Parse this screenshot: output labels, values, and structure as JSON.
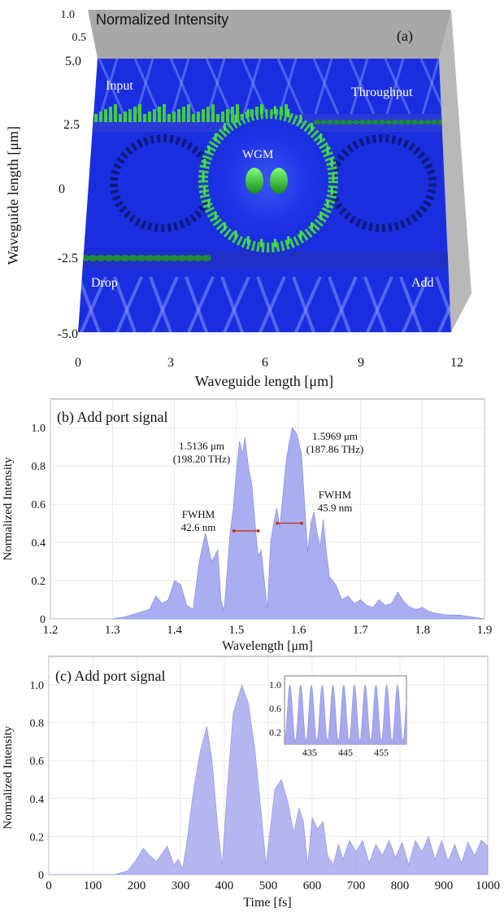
{
  "panel_a": {
    "z_label": "Normalized Intensity",
    "z_ticks": [
      "1.0",
      "0.5"
    ],
    "panel_label": "(a)",
    "y_label": "Waveguide length [μm]",
    "x_label": "Waveguide length [μm]",
    "y_ticks": [
      "5.0",
      "2.5",
      "0",
      "-2.5",
      "-5.0"
    ],
    "x_ticks": [
      "0",
      "3",
      "6",
      "9",
      "12"
    ],
    "annotations": {
      "input": "Input",
      "throughput": "Throughput",
      "drop": "Drop",
      "add": "Add",
      "wgm": "WGM"
    },
    "colors": {
      "field": "#1a2ee0",
      "peak": "#3fcf3f",
      "wall": "#b4b4b4"
    }
  },
  "chart_data": [
    {
      "type": "area",
      "title": "(b) Add port signal",
      "xlabel": "Wavelength [μm]",
      "ylabel": "Normalized Intensity",
      "xlim": [
        1.2,
        1.9
      ],
      "ylim": [
        0,
        1.15
      ],
      "x_ticks": [
        1.2,
        1.3,
        1.4,
        1.5,
        1.6,
        1.7,
        1.8,
        1.9
      ],
      "y_ticks": [
        0,
        0.2,
        0.4,
        0.6,
        0.8,
        1.0
      ],
      "x_tick_labels": [
        "1.2",
        "1.3",
        "1.4",
        "1.5",
        "1.6",
        "1.7",
        "1.8",
        "1.9"
      ],
      "y_tick_labels": [
        "0",
        "0.2",
        "0.4",
        "0.6",
        "0.8",
        "1.0"
      ],
      "fill_color": "#9aa0ee",
      "x": [
        1.3,
        1.32,
        1.34,
        1.36,
        1.37,
        1.38,
        1.39,
        1.4,
        1.41,
        1.42,
        1.43,
        1.44,
        1.45,
        1.46,
        1.47,
        1.475,
        1.48,
        1.49,
        1.495,
        1.5,
        1.505,
        1.51,
        1.5136,
        1.52,
        1.525,
        1.53,
        1.535,
        1.54,
        1.545,
        1.55,
        1.555,
        1.56,
        1.565,
        1.57,
        1.575,
        1.58,
        1.585,
        1.59,
        1.5969,
        1.605,
        1.61,
        1.615,
        1.62,
        1.625,
        1.63,
        1.635,
        1.64,
        1.645,
        1.65,
        1.66,
        1.67,
        1.68,
        1.69,
        1.7,
        1.71,
        1.72,
        1.73,
        1.74,
        1.75,
        1.76,
        1.77,
        1.78,
        1.79,
        1.8,
        1.81,
        1.82,
        1.84,
        1.86,
        1.88,
        1.9
      ],
      "values": [
        0.0,
        0.01,
        0.03,
        0.05,
        0.12,
        0.08,
        0.1,
        0.2,
        0.18,
        0.07,
        0.05,
        0.3,
        0.45,
        0.3,
        0.36,
        0.1,
        0.04,
        0.46,
        0.58,
        0.78,
        0.93,
        0.86,
        0.95,
        0.78,
        0.7,
        0.5,
        0.33,
        0.36,
        0.2,
        0.05,
        0.4,
        0.5,
        0.58,
        0.48,
        0.65,
        0.82,
        0.92,
        1.0,
        0.97,
        0.86,
        0.6,
        0.35,
        0.5,
        0.56,
        0.45,
        0.38,
        0.52,
        0.35,
        0.22,
        0.18,
        0.1,
        0.12,
        0.08,
        0.1,
        0.07,
        0.06,
        0.1,
        0.07,
        0.08,
        0.14,
        0.09,
        0.06,
        0.05,
        0.06,
        0.04,
        0.03,
        0.02,
        0.02,
        0.01,
        0.0
      ],
      "annotations": [
        {
          "text": "1.5136 μm",
          "x": 1.5136
        },
        {
          "text": "(198.20 THz)",
          "x": 1.5136
        },
        {
          "text": "1.5969 μm",
          "x": 1.5969
        },
        {
          "text": "(187.86 THz)",
          "x": 1.5969
        },
        {
          "text": "FWHM",
          "x": 1.46
        },
        {
          "text": "42.6 nm",
          "x": 1.46
        },
        {
          "text": "FWHM",
          "x": 1.64
        },
        {
          "text": "45.9 nm",
          "x": 1.64
        }
      ],
      "fwhm_markers": [
        {
          "x1": 1.496,
          "x2": 1.535,
          "y": 0.46
        },
        {
          "x1": 1.566,
          "x2": 1.605,
          "y": 0.5
        }
      ]
    },
    {
      "type": "area",
      "title": "(c) Add port signal",
      "xlabel": "Time [fs]",
      "ylabel": "Normalized Intensity",
      "xlim": [
        0,
        1000
      ],
      "ylim": [
        0,
        1.15
      ],
      "x_ticks": [
        0,
        100,
        200,
        300,
        400,
        500,
        600,
        700,
        800,
        900,
        1000
      ],
      "y_ticks": [
        0,
        0.2,
        0.4,
        0.6,
        0.8,
        1.0
      ],
      "x_tick_labels": [
        "0",
        "100",
        "200",
        "300",
        "400",
        "500",
        "600",
        "700",
        "800",
        "900",
        "1000"
      ],
      "y_tick_labels": [
        "0",
        "0.2",
        "0.4",
        "0.6",
        "0.8",
        "1.0"
      ],
      "fill_color": "#a7a9ec",
      "x": [
        0,
        150,
        180,
        200,
        215,
        230,
        245,
        255,
        270,
        285,
        295,
        305,
        315,
        330,
        345,
        360,
        372,
        385,
        395,
        405,
        420,
        440,
        455,
        470,
        485,
        495,
        505,
        515,
        530,
        545,
        558,
        570,
        580,
        590,
        600,
        612,
        625,
        635,
        648,
        660,
        670,
        685,
        700,
        715,
        730,
        745,
        760,
        775,
        790,
        805,
        820,
        835,
        850,
        865,
        880,
        895,
        910,
        925,
        940,
        955,
        970,
        985,
        1000
      ],
      "values": [
        0.0,
        0.0,
        0.02,
        0.08,
        0.14,
        0.1,
        0.07,
        0.1,
        0.15,
        0.05,
        0.08,
        0.03,
        0.18,
        0.45,
        0.65,
        0.78,
        0.6,
        0.25,
        0.05,
        0.4,
        0.85,
        1.0,
        0.9,
        0.65,
        0.3,
        0.05,
        0.25,
        0.45,
        0.5,
        0.38,
        0.22,
        0.35,
        0.28,
        0.05,
        0.3,
        0.24,
        0.28,
        0.1,
        0.05,
        0.16,
        0.08,
        0.18,
        0.12,
        0.18,
        0.06,
        0.16,
        0.1,
        0.18,
        0.09,
        0.17,
        0.05,
        0.18,
        0.12,
        0.2,
        0.08,
        0.18,
        0.07,
        0.16,
        0.06,
        0.17,
        0.1,
        0.18,
        0.15
      ],
      "inset": {
        "xlim": [
          428,
          462
        ],
        "ylim": [
          0,
          1.15
        ],
        "x_ticks": [
          435,
          445,
          455
        ],
        "y_ticks": [
          0.2,
          0.6,
          1.0
        ],
        "x_tick_labels": [
          "435",
          "445",
          "455"
        ],
        "y_tick_labels": [
          "0.2",
          "0.6",
          "1.0"
        ],
        "oscillation_period": 3,
        "min": 0.04,
        "max": 1.0
      }
    }
  ]
}
